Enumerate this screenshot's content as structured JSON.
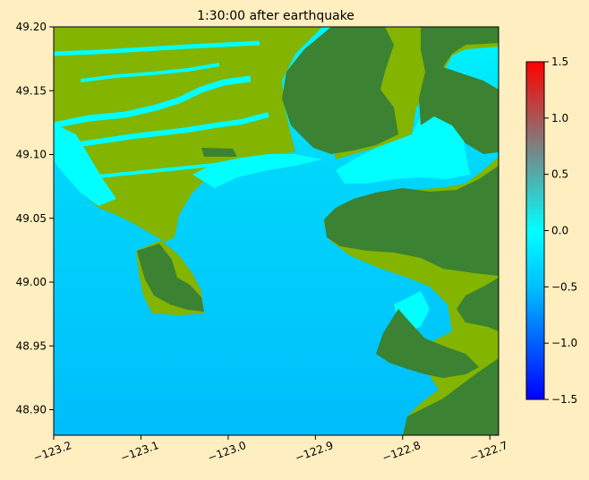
{
  "chart_data": {
    "type": "heatmap",
    "title": "1:30:00 after earthquake",
    "xlabel": "",
    "ylabel": "",
    "xlim": [
      -123.2,
      -122.69
    ],
    "ylim": [
      48.88,
      49.2
    ],
    "xticks": [
      -123.2,
      -123.1,
      -123.0,
      -122.9,
      -122.8,
      -122.7
    ],
    "xtick_labels": [
      "−123.2",
      "−123.1",
      "−123.0",
      "−122.9",
      "−122.8",
      "−122.7"
    ],
    "yticks": [
      48.9,
      48.95,
      49.0,
      49.05,
      49.1,
      49.15,
      49.2
    ],
    "ytick_labels": [
      "48.90",
      "48.95",
      "49.00",
      "49.05",
      "49.10",
      "49.15",
      "49.20"
    ],
    "colorbar": {
      "range": [
        -1.5,
        1.5
      ],
      "ticks": [
        -1.5,
        -1.0,
        -0.5,
        0.0,
        0.5,
        1.0,
        1.5
      ],
      "tick_labels": [
        "−1.5",
        "−1.0",
        "−0.5",
        "0.0",
        "0.5",
        "1.0",
        "1.5"
      ],
      "colormap_stops": [
        "#0000ff",
        "#00bfff",
        "#00ffff",
        "#7f7f7f",
        "#ff0000"
      ]
    },
    "grid": false,
    "legend": "none",
    "colors": {
      "water_deep": "#00bdfb",
      "water_shallow": "#00ffff",
      "land_low": "#82b400",
      "land_high": "#3b8232"
    }
  }
}
